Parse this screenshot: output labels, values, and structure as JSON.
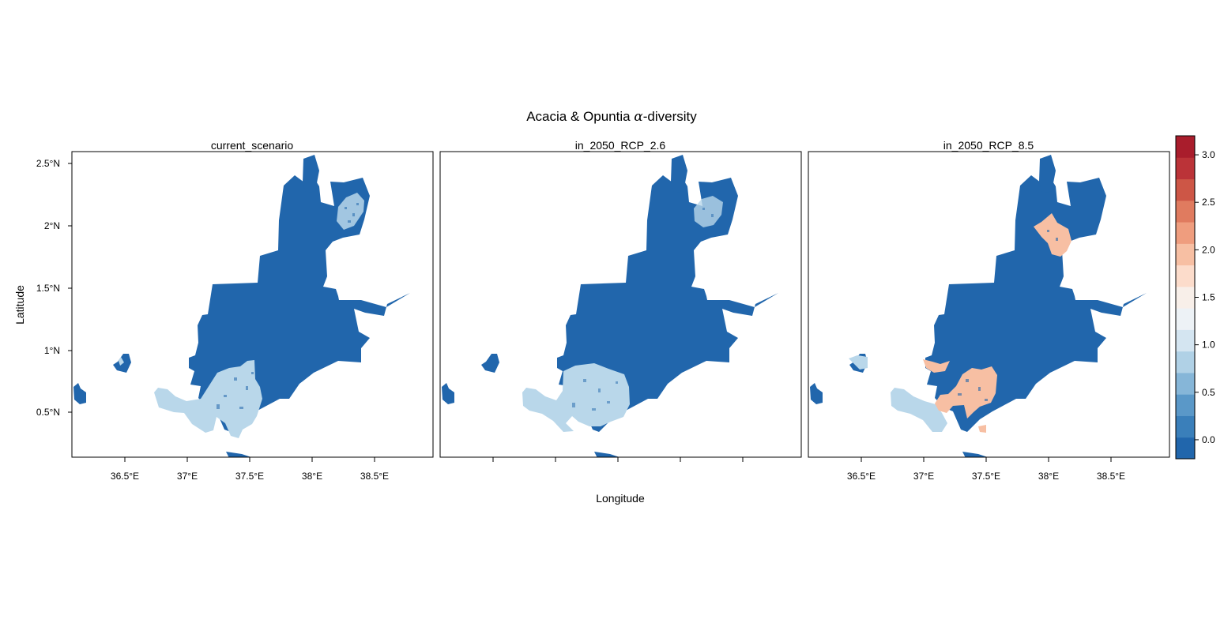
{
  "figure": {
    "title_main": "Acacia & Opuntia ",
    "title_greek": "α",
    "title_rest": "-diversity",
    "x_axis_label": "Longitude",
    "y_axis_label": "Latitude"
  },
  "panels": [
    {
      "title": "current_scenario"
    },
    {
      "title": "in_2050_RCP_2.6"
    },
    {
      "title": "in_2050_RCP_8.5"
    }
  ],
  "x_ticks": [
    "36.5°E",
    "37°E",
    "37.5°E",
    "38°E",
    "38.5°E"
  ],
  "y_ticks": [
    "2.5°N",
    "2°N",
    "1.5°N",
    "1°N",
    "0.5°N"
  ],
  "colorbar": {
    "tick_labels": [
      "0.0",
      "0.5",
      "1.0",
      "1.5",
      "2.0",
      "2.5",
      "3.0"
    ],
    "colors": [
      "#2166ac",
      "#3a7fba",
      "#5a98c8",
      "#86b6d8",
      "#b0d1e6",
      "#d4e5f1",
      "#edf2f6",
      "#f8efe9",
      "#fcdccb",
      "#f7bfa3",
      "#ef9d7e",
      "#e07b5f",
      "#cd5646",
      "#bb3338",
      "#a91d2c"
    ]
  },
  "chart_data": {
    "type": "heatmap",
    "title": "Acacia & Opuntia α-diversity",
    "xlabel": "Longitude",
    "ylabel": "Latitude",
    "xlim": [
      36.1,
      38.95
    ],
    "ylim": [
      0.13,
      2.58
    ],
    "x_ticks": [
      36.5,
      37.0,
      37.5,
      38.0,
      38.5
    ],
    "y_ticks": [
      0.5,
      1.0,
      1.5,
      2.0,
      2.5
    ],
    "panels": [
      "current_scenario",
      "in_2050_RCP_2.6",
      "in_2050_RCP_8.5"
    ],
    "colorbar_range": [
      -0.2,
      3.2
    ],
    "colorbar_ticks": [
      0.0,
      0.5,
      1.0,
      1.5,
      2.0,
      2.5,
      3.0
    ],
    "description_values": {
      "background_value": 0.0,
      "light_blue_patches": 0.9,
      "salmon_patches_rcp85": 2.2
    }
  }
}
